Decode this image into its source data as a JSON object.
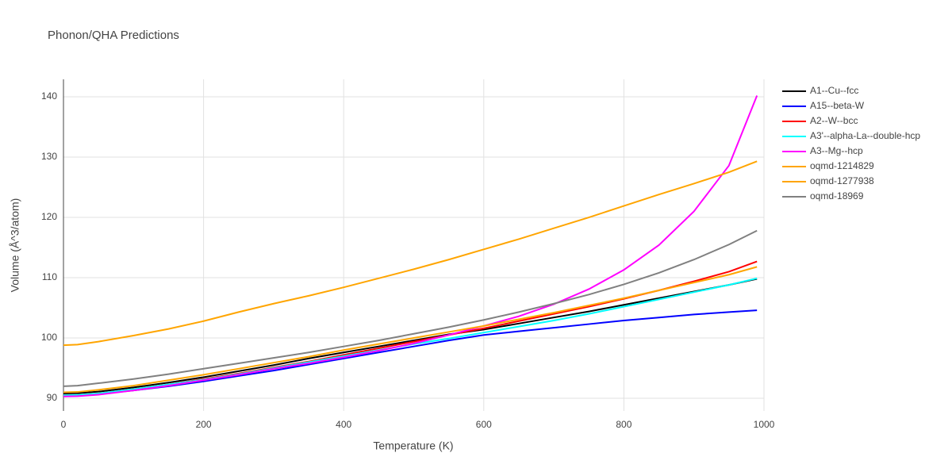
{
  "chart_data": {
    "type": "line",
    "title": "Phonon/QHA Predictions",
    "x_label": "Temperature (K)",
    "y_label": "Volume (Å^3/atom)",
    "x": [
      0,
      20,
      50,
      100,
      150,
      200,
      250,
      300,
      350,
      400,
      450,
      500,
      550,
      600,
      650,
      700,
      750,
      800,
      850,
      900,
      950,
      990
    ],
    "series": [
      {
        "name": "A1--Cu--fcc",
        "color": "#000000",
        "values": [
          90.8,
          90.85,
          91.1,
          91.8,
          92.6,
          93.5,
          94.5,
          95.5,
          96.6,
          97.6,
          98.6,
          99.6,
          100.6,
          101.4,
          102.4,
          103.4,
          104.4,
          105.5,
          106.6,
          107.7,
          108.8,
          109.8
        ]
      },
      {
        "name": "A15--beta-W",
        "color": "#0000ff",
        "values": [
          90.4,
          90.45,
          90.7,
          91.3,
          92.0,
          92.8,
          93.7,
          94.6,
          95.6,
          96.6,
          97.6,
          98.6,
          99.6,
          100.5,
          101.1,
          101.7,
          102.3,
          102.9,
          103.4,
          103.9,
          104.3,
          104.6
        ]
      },
      {
        "name": "A2--W--bcc",
        "color": "#ff0000",
        "values": [
          90.5,
          90.55,
          90.8,
          91.5,
          92.3,
          93.2,
          94.1,
          95.1,
          96.1,
          97.2,
          98.3,
          99.4,
          100.5,
          101.6,
          102.8,
          104.0,
          105.2,
          106.5,
          107.9,
          109.4,
          111.0,
          112.7
        ]
      },
      {
        "name": "A3'--alpha-La--double-hcp",
        "color": "#00ffff",
        "values": [
          90.5,
          90.55,
          90.8,
          91.5,
          92.3,
          93.1,
          94.0,
          95.0,
          96.0,
          97.0,
          98.0,
          99.0,
          99.9,
          100.9,
          101.9,
          102.9,
          104.0,
          105.2,
          106.4,
          107.6,
          108.8,
          109.9
        ]
      },
      {
        "name": "A3--Mg--hcp",
        "color": "#ff00ff",
        "values": [
          90.3,
          90.35,
          90.6,
          91.3,
          92.1,
          93.0,
          93.9,
          94.9,
          95.8,
          96.8,
          97.9,
          99.1,
          100.5,
          102.0,
          103.6,
          105.6,
          108.1,
          111.3,
          115.4,
          121.0,
          128.6,
          140.2
        ]
      },
      {
        "name": "oqmd-1214829",
        "color": "#ffa500",
        "values": [
          91.0,
          91.05,
          91.4,
          92.1,
          93.0,
          93.9,
          94.9,
          95.9,
          96.9,
          98.0,
          99.0,
          100.0,
          101.0,
          102.0,
          103.1,
          104.2,
          105.4,
          106.6,
          107.9,
          109.2,
          110.5,
          111.8
        ]
      },
      {
        "name": "oqmd-1277938",
        "color": "#ffa500",
        "values": [
          98.8,
          98.9,
          99.4,
          100.4,
          101.5,
          102.8,
          104.3,
          105.7,
          107.0,
          108.4,
          109.9,
          111.4,
          113.0,
          114.7,
          116.4,
          118.2,
          120.0,
          121.9,
          123.8,
          125.6,
          127.5,
          129.3
        ]
      },
      {
        "name": "oqmd-18969",
        "color": "#808080",
        "values": [
          92.0,
          92.1,
          92.5,
          93.2,
          94.0,
          94.9,
          95.8,
          96.7,
          97.6,
          98.6,
          99.6,
          100.7,
          101.8,
          103.0,
          104.3,
          105.7,
          107.2,
          108.9,
          110.8,
          113.0,
          115.5,
          117.8
        ]
      }
    ],
    "xlim": [
      0,
      1000
    ],
    "xticks": [
      0,
      200,
      400,
      600,
      800,
      1000
    ],
    "ylim": [
      87.9,
      142.9
    ],
    "yticks": [
      90,
      100,
      110,
      120,
      130,
      140
    ],
    "grid": true,
    "legend": "right"
  }
}
